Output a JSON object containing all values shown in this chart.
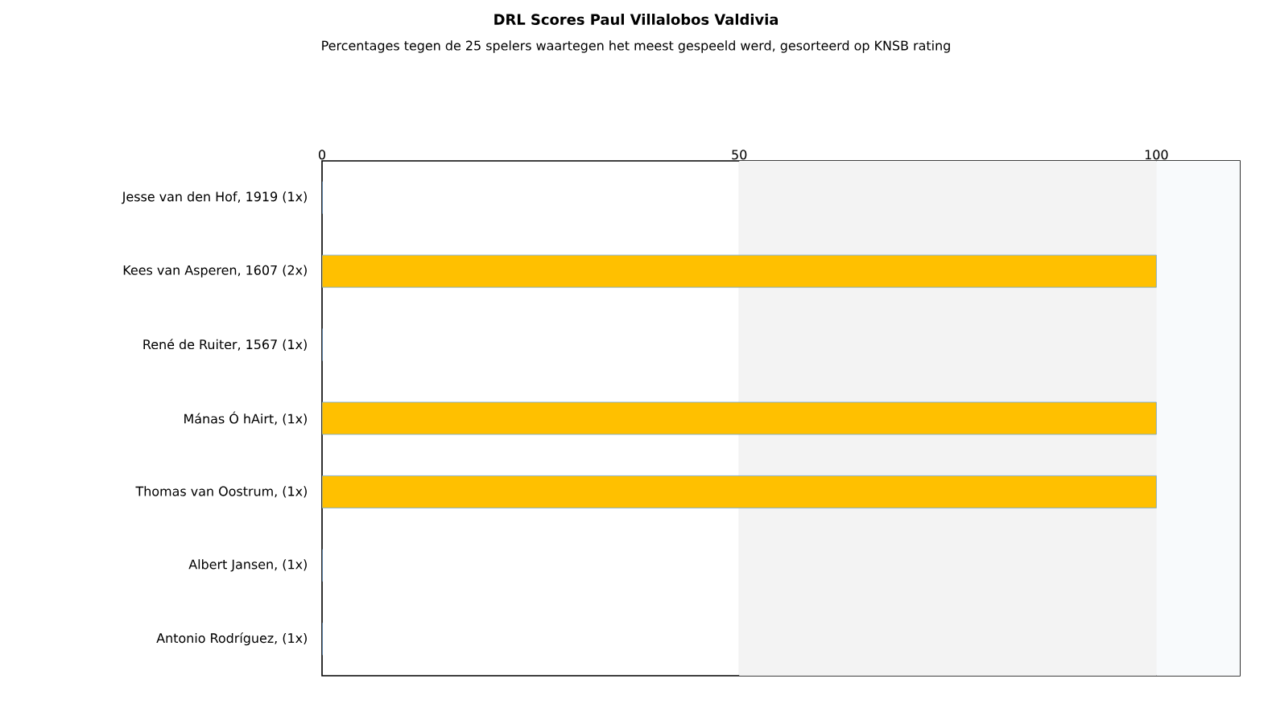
{
  "chart_data": {
    "type": "bar",
    "orientation": "horizontal",
    "title": "DRL Scores Paul Villalobos Valdivia",
    "subtitle": "Percentages tegen de 25 spelers waartegen het meest gespeeld werd, gesorteerd op KNSB rating",
    "categories": [
      "Jesse van den Hof, 1919 (1x)",
      "Kees van Asperen, 1607 (2x)",
      "René de Ruiter, 1567 (1x)",
      "Mánas Ó hAirt,  (1x)",
      "Thomas van Oostrum,  (1x)",
      "Albert Jansen,  (1x)",
      "Antonio Rodríguez,  (1x)"
    ],
    "values": [
      0,
      100,
      0,
      100,
      100,
      0,
      0
    ],
    "color": "#ffc000",
    "xlim": [
      0,
      110
    ],
    "xticks": [
      0,
      50,
      100
    ],
    "grid": "x",
    "bands": [
      {
        "axis": "x",
        "from": 50,
        "to": 100,
        "color": "#f3f3f3"
      },
      {
        "axis": "x",
        "from": 100,
        "to": 110,
        "color": "#f8fafc"
      }
    ]
  }
}
